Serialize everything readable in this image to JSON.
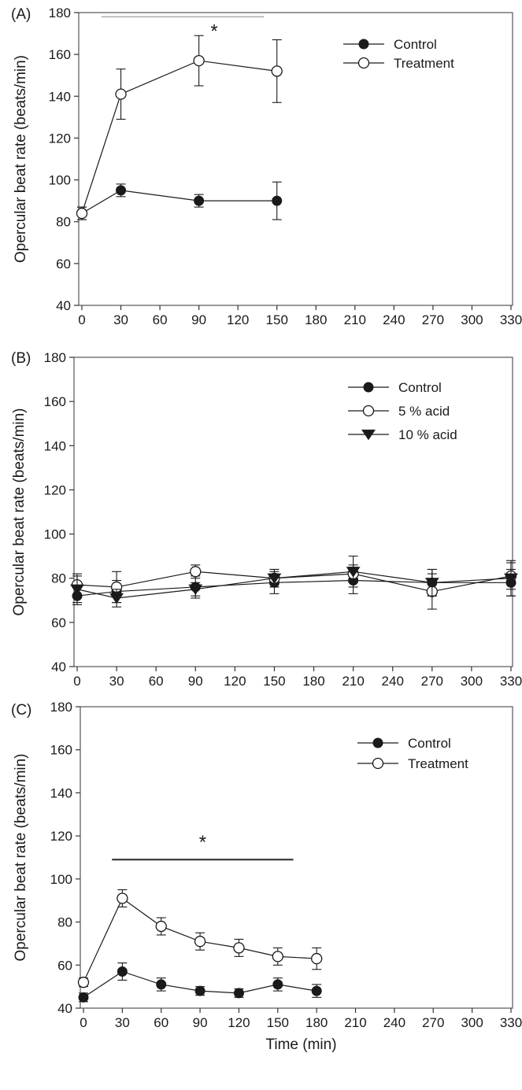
{
  "chart_data": [
    {
      "panel_label": "(A)",
      "type": "line",
      "xlabel": "",
      "ylabel": "Opercular beat rate (beats/min)",
      "xlim": [
        0,
        330
      ],
      "ylim": [
        40,
        180
      ],
      "xticks": [
        0,
        30,
        60,
        90,
        120,
        150,
        180,
        210,
        240,
        270,
        300,
        330
      ],
      "yticks": [
        40,
        60,
        80,
        100,
        120,
        140,
        160,
        180
      ],
      "legend_position": "top-right",
      "significance": {
        "label": "*",
        "x_range": [
          15,
          140
        ],
        "y": 178,
        "line_color": "#b0b0b0"
      },
      "series": [
        {
          "name": "Control",
          "marker": "filled-circle",
          "x": [
            0,
            30,
            90,
            150
          ],
          "values": [
            84,
            95,
            90,
            90
          ],
          "errors": [
            3,
            3,
            3,
            9
          ]
        },
        {
          "name": "Treatment",
          "marker": "open-circle",
          "x": [
            0,
            30,
            90,
            150
          ],
          "values": [
            84,
            141,
            157,
            152
          ],
          "errors": [
            3,
            12,
            12,
            15
          ]
        }
      ]
    },
    {
      "panel_label": "(B)",
      "type": "line",
      "xlabel": "",
      "ylabel": "Opercular beat rate (beats/min)",
      "xlim": [
        0,
        330
      ],
      "ylim": [
        40,
        180
      ],
      "xticks": [
        0,
        30,
        60,
        90,
        120,
        150,
        180,
        210,
        240,
        270,
        300,
        330
      ],
      "yticks": [
        40,
        60,
        80,
        100,
        120,
        140,
        160,
        180
      ],
      "legend_position": "top-right",
      "series": [
        {
          "name": "Control",
          "marker": "filled-circle",
          "x": [
            0,
            30,
            90,
            150,
            210,
            270,
            330
          ],
          "values": [
            72,
            74,
            76,
            78,
            79,
            78,
            78
          ],
          "errors": [
            4,
            5,
            5,
            5,
            6,
            6,
            6
          ]
        },
        {
          "name": "5 % acid",
          "marker": "open-circle",
          "x": [
            0,
            30,
            90,
            150,
            210,
            270,
            330
          ],
          "values": [
            77,
            76,
            83,
            80,
            82,
            74,
            81
          ],
          "errors": [
            5,
            7,
            3,
            4,
            4,
            8,
            6
          ]
        },
        {
          "name": "10 % acid",
          "marker": "filled-triangle-down",
          "x": [
            0,
            30,
            90,
            150,
            210,
            270,
            330
          ],
          "values": [
            75,
            71,
            75,
            80,
            83,
            78,
            80
          ],
          "errors": [
            6,
            4,
            3,
            4,
            7,
            6,
            8
          ]
        }
      ]
    },
    {
      "panel_label": "(C)",
      "type": "line",
      "xlabel": "Time (min)",
      "ylabel": "Opercular beat rate (beats/min)",
      "xlim": [
        0,
        330
      ],
      "ylim": [
        40,
        180
      ],
      "xticks": [
        0,
        30,
        60,
        90,
        120,
        150,
        180,
        210,
        240,
        270,
        300,
        330
      ],
      "yticks": [
        40,
        60,
        80,
        100,
        120,
        140,
        160,
        180
      ],
      "legend_position": "top-right",
      "significance": {
        "label": "*",
        "x_range": [
          22,
          162
        ],
        "y": 109,
        "line_color": "#3a3a3a"
      },
      "series": [
        {
          "name": "Control",
          "marker": "filled-circle",
          "x": [
            0,
            30,
            60,
            90,
            120,
            150,
            180
          ],
          "values": [
            45,
            57,
            51,
            48,
            47,
            51,
            48
          ],
          "errors": [
            2,
            4,
            3,
            2,
            2,
            3,
            3
          ]
        },
        {
          "name": "Treatment",
          "marker": "open-circle",
          "x": [
            0,
            30,
            60,
            90,
            120,
            150,
            180
          ],
          "values": [
            52,
            91,
            78,
            71,
            68,
            64,
            63
          ],
          "errors": [
            2,
            4,
            4,
            4,
            4,
            4,
            5
          ]
        }
      ]
    }
  ]
}
